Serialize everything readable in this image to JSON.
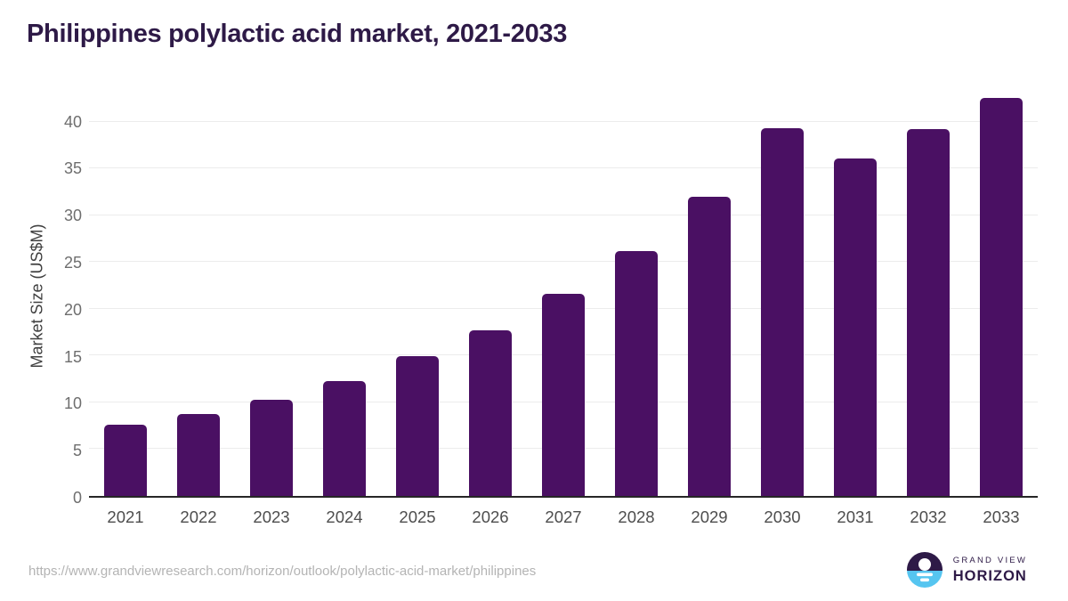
{
  "title": "Philippines polylactic acid market, 2021-2033",
  "chart_data": {
    "type": "bar",
    "title": "Philippines polylactic acid market, 2021-2033",
    "categories": [
      "2021",
      "2022",
      "2023",
      "2024",
      "2025",
      "2026",
      "2027",
      "2028",
      "2029",
      "2030",
      "2031",
      "2032",
      "2033"
    ],
    "values": [
      7.6,
      8.8,
      10.3,
      12.3,
      14.9,
      17.7,
      21.6,
      26.2,
      32.0,
      39.3,
      36.1,
      39.2,
      42.5
    ],
    "xlabel": "",
    "ylabel": "Market Size (US$M)",
    "ylim": [
      0,
      43
    ],
    "yticks": [
      0,
      5,
      10,
      15,
      20,
      25,
      30,
      35,
      40
    ],
    "grid": "horizontal",
    "legend": "none",
    "bar_color": "#4a1063"
  },
  "colors": {
    "title": "#2e1a47",
    "bar": "#4a1063",
    "axis_line": "#262626",
    "gridline": "#ececec",
    "y_tick_label": "#6e6e6e",
    "x_tick_label": "#4d4d4d",
    "y_axis_label": "#3f3f3f",
    "source_url": "#b4b4b4",
    "logo_dark_purple": "#2e1a47",
    "logo_light_blue": "#56c5f0"
  },
  "footer": {
    "source_url": "https://www.grandviewresearch.com/horizon/outlook/polylactic-acid-market/philippines",
    "logo": {
      "line1": "GRAND VIEW",
      "line2": "HORIZON"
    }
  }
}
